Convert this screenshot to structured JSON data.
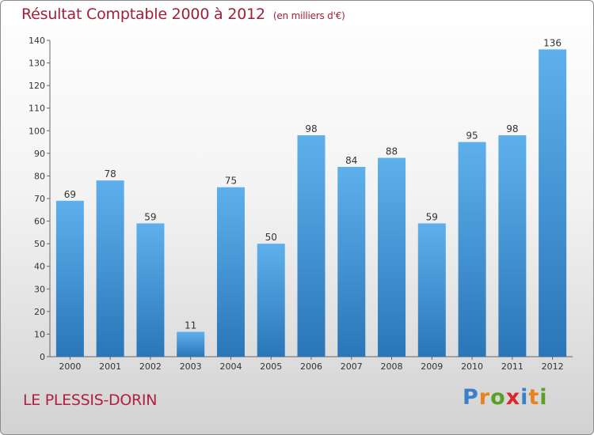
{
  "title": "Résultat Comptable 2000 à 2012",
  "unit_note": "(en milliers d'€)",
  "place_name": "LE PLESSIS-DORIN",
  "brand": {
    "letters": [
      "P",
      "r",
      "o",
      "x",
      "i",
      "t",
      "i"
    ],
    "colors": [
      "#3a7fc8",
      "#e8821e",
      "#5aa028",
      "#d8282e",
      "#3a7fc8",
      "#e8821e",
      "#5aa028"
    ]
  },
  "colors": {
    "bar_top": "#5eb0ec",
    "bar_bottom": "#2a76b8",
    "title": "#a0203a"
  },
  "chart_data": {
    "type": "bar",
    "title": "Résultat Comptable 2000 à 2012",
    "categories": [
      "2000",
      "2001",
      "2002",
      "2003",
      "2004",
      "2005",
      "2006",
      "2007",
      "2008",
      "2009",
      "2010",
      "2011",
      "2012"
    ],
    "values": [
      69,
      78,
      59,
      11,
      75,
      50,
      98,
      84,
      88,
      59,
      95,
      98,
      136
    ],
    "yticks": [
      0,
      10,
      20,
      30,
      40,
      50,
      60,
      70,
      80,
      90,
      100,
      110,
      120,
      130,
      140
    ],
    "ylim": [
      0,
      140
    ],
    "xlabel": "",
    "ylabel": "",
    "grid": false
  }
}
